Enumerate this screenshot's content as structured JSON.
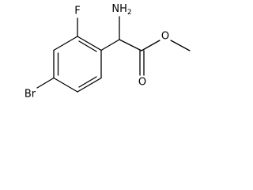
{
  "atoms": {
    "amine": {
      "label": "NH",
      "subscript": "2"
    },
    "fluorine": {
      "label": "F"
    },
    "bromine": {
      "label": "Br"
    },
    "carbonyl_oxygen": {
      "label": "O"
    },
    "ester_oxygen": {
      "label": "O"
    }
  }
}
